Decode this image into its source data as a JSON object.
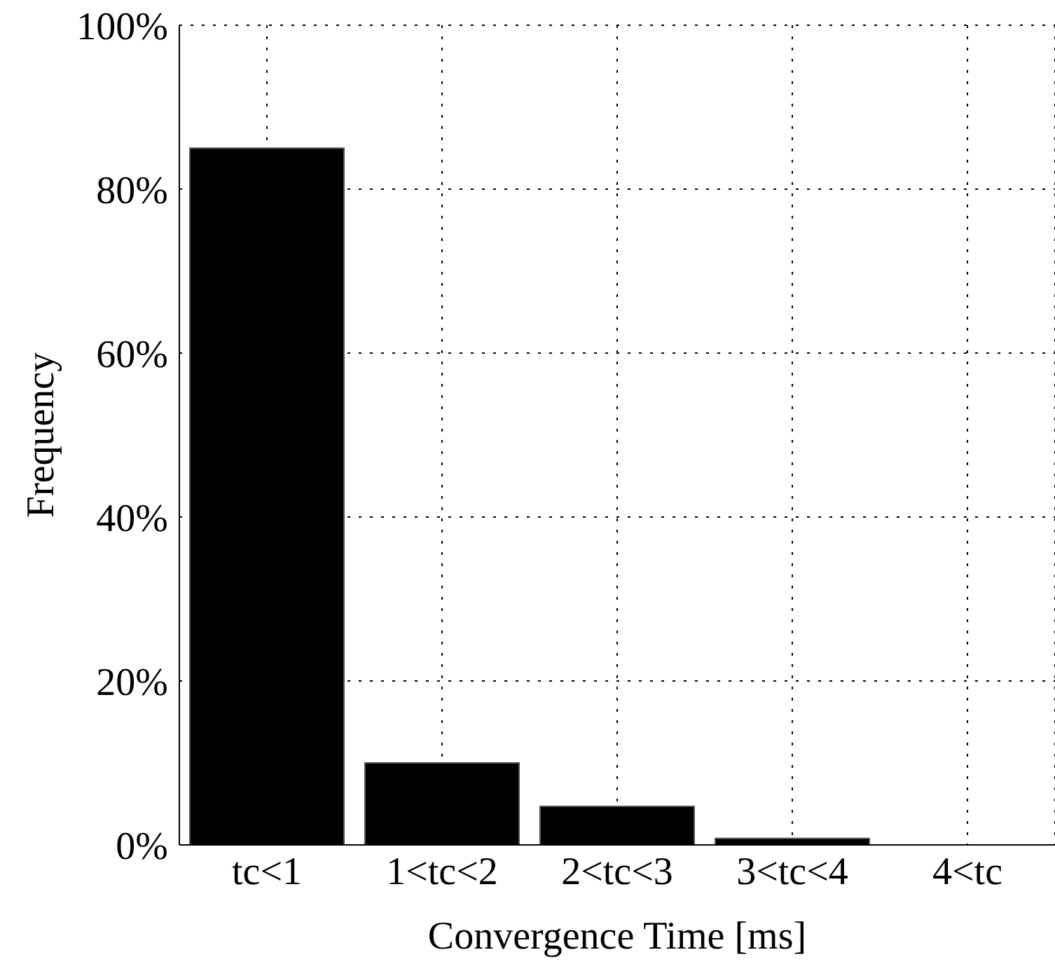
{
  "chart_data": {
    "type": "bar",
    "xlabel": "Convergence Time [ms]",
    "ylabel": "Frequency",
    "categories": [
      "tc<1",
      "1<tc<2",
      "2<tc<3",
      "3<tc<4",
      "4<tc"
    ],
    "values": [
      85,
      10,
      4.7,
      0.8,
      0
    ],
    "color": "#000000",
    "ylim": [
      0,
      100
    ],
    "yticks": [
      {
        "value": 0,
        "label": "0%"
      },
      {
        "value": 20,
        "label": "20%"
      },
      {
        "value": 40,
        "label": "40%"
      },
      {
        "value": 60,
        "label": "60%"
      },
      {
        "value": 80,
        "label": "80%"
      },
      {
        "value": 100,
        "label": "100%"
      }
    ],
    "grid": true
  }
}
